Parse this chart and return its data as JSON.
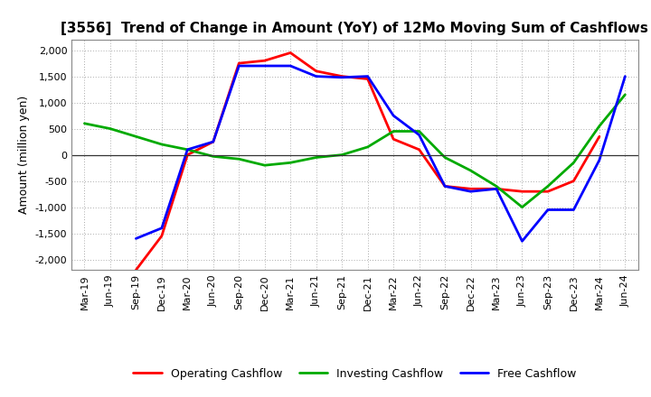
{
  "title": "[3556]  Trend of Change in Amount (YoY) of 12Mo Moving Sum of Cashflows",
  "ylabel": "Amount (million yen)",
  "xlabels": [
    "Mar-19",
    "Jun-19",
    "Sep-19",
    "Dec-19",
    "Mar-20",
    "Jun-20",
    "Sep-20",
    "Dec-20",
    "Mar-21",
    "Jun-21",
    "Sep-21",
    "Dec-21",
    "Mar-22",
    "Jun-22",
    "Sep-22",
    "Dec-22",
    "Mar-23",
    "Jun-23",
    "Sep-23",
    "Dec-23",
    "Mar-24",
    "Jun-24"
  ],
  "operating": [
    null,
    null,
    -2200,
    -1550,
    0,
    250,
    1750,
    1800,
    1950,
    1600,
    1500,
    1450,
    300,
    100,
    -600,
    -650,
    -650,
    -700,
    -700,
    -500,
    350,
    null
  ],
  "investing": [
    600,
    500,
    350,
    200,
    100,
    -30,
    -80,
    -200,
    -150,
    -50,
    0,
    150,
    450,
    450,
    -50,
    -300,
    -600,
    -1000,
    -600,
    -150,
    550,
    1150
  ],
  "free": [
    null,
    null,
    -1600,
    -1400,
    100,
    250,
    1700,
    1700,
    1700,
    1500,
    1480,
    1500,
    750,
    380,
    -600,
    -700,
    -650,
    -1650,
    -1050,
    -1050,
    -100,
    1500
  ],
  "ylim": [
    -2200,
    2200
  ],
  "yticks": [
    -2000,
    -1500,
    -1000,
    -500,
    0,
    500,
    1000,
    1500,
    2000
  ],
  "operating_color": "#ff0000",
  "investing_color": "#00aa00",
  "free_color": "#0000ff",
  "background_color": "#ffffff",
  "grid_color": "#aaaaaa",
  "linewidth": 2.0,
  "title_fontsize": 11,
  "axis_fontsize": 8,
  "ylabel_fontsize": 9,
  "legend_fontsize": 9
}
